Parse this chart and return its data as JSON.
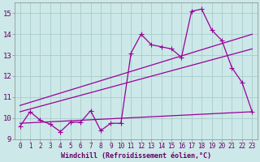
{
  "xlabel": "Windchill (Refroidissement éolien,°C)",
  "xlim": [
    -0.5,
    23.5
  ],
  "ylim": [
    9,
    15.5
  ],
  "yticks": [
    9,
    10,
    11,
    12,
    13,
    14,
    15
  ],
  "xticks": [
    0,
    1,
    2,
    3,
    4,
    5,
    6,
    7,
    8,
    9,
    10,
    11,
    12,
    13,
    14,
    15,
    16,
    17,
    18,
    19,
    20,
    21,
    22,
    23
  ],
  "background_color": "#cce8e8",
  "grid_color": "#aacccc",
  "line_color": "#990099",
  "line1_x": [
    0,
    1,
    2,
    3,
    4,
    5,
    6,
    7,
    8,
    9,
    10,
    11,
    12,
    13,
    14,
    15,
    16,
    17,
    18,
    19,
    20,
    21,
    22,
    23
  ],
  "line1_y": [
    9.6,
    10.3,
    9.9,
    9.7,
    9.35,
    9.8,
    9.8,
    10.35,
    9.4,
    9.75,
    9.75,
    13.1,
    14.0,
    13.5,
    13.4,
    13.3,
    12.9,
    15.1,
    15.2,
    14.2,
    13.7,
    12.4,
    11.7,
    10.3
  ],
  "line2_x": [
    0,
    23
  ],
  "line2_y": [
    9.75,
    10.3
  ],
  "line3_x": [
    0,
    23
  ],
  "line3_y": [
    10.3,
    13.3
  ],
  "line4_x": [
    0,
    23
  ],
  "line4_y": [
    10.6,
    14.0
  ],
  "marker": "+",
  "markersize": 4,
  "linewidth": 0.9
}
